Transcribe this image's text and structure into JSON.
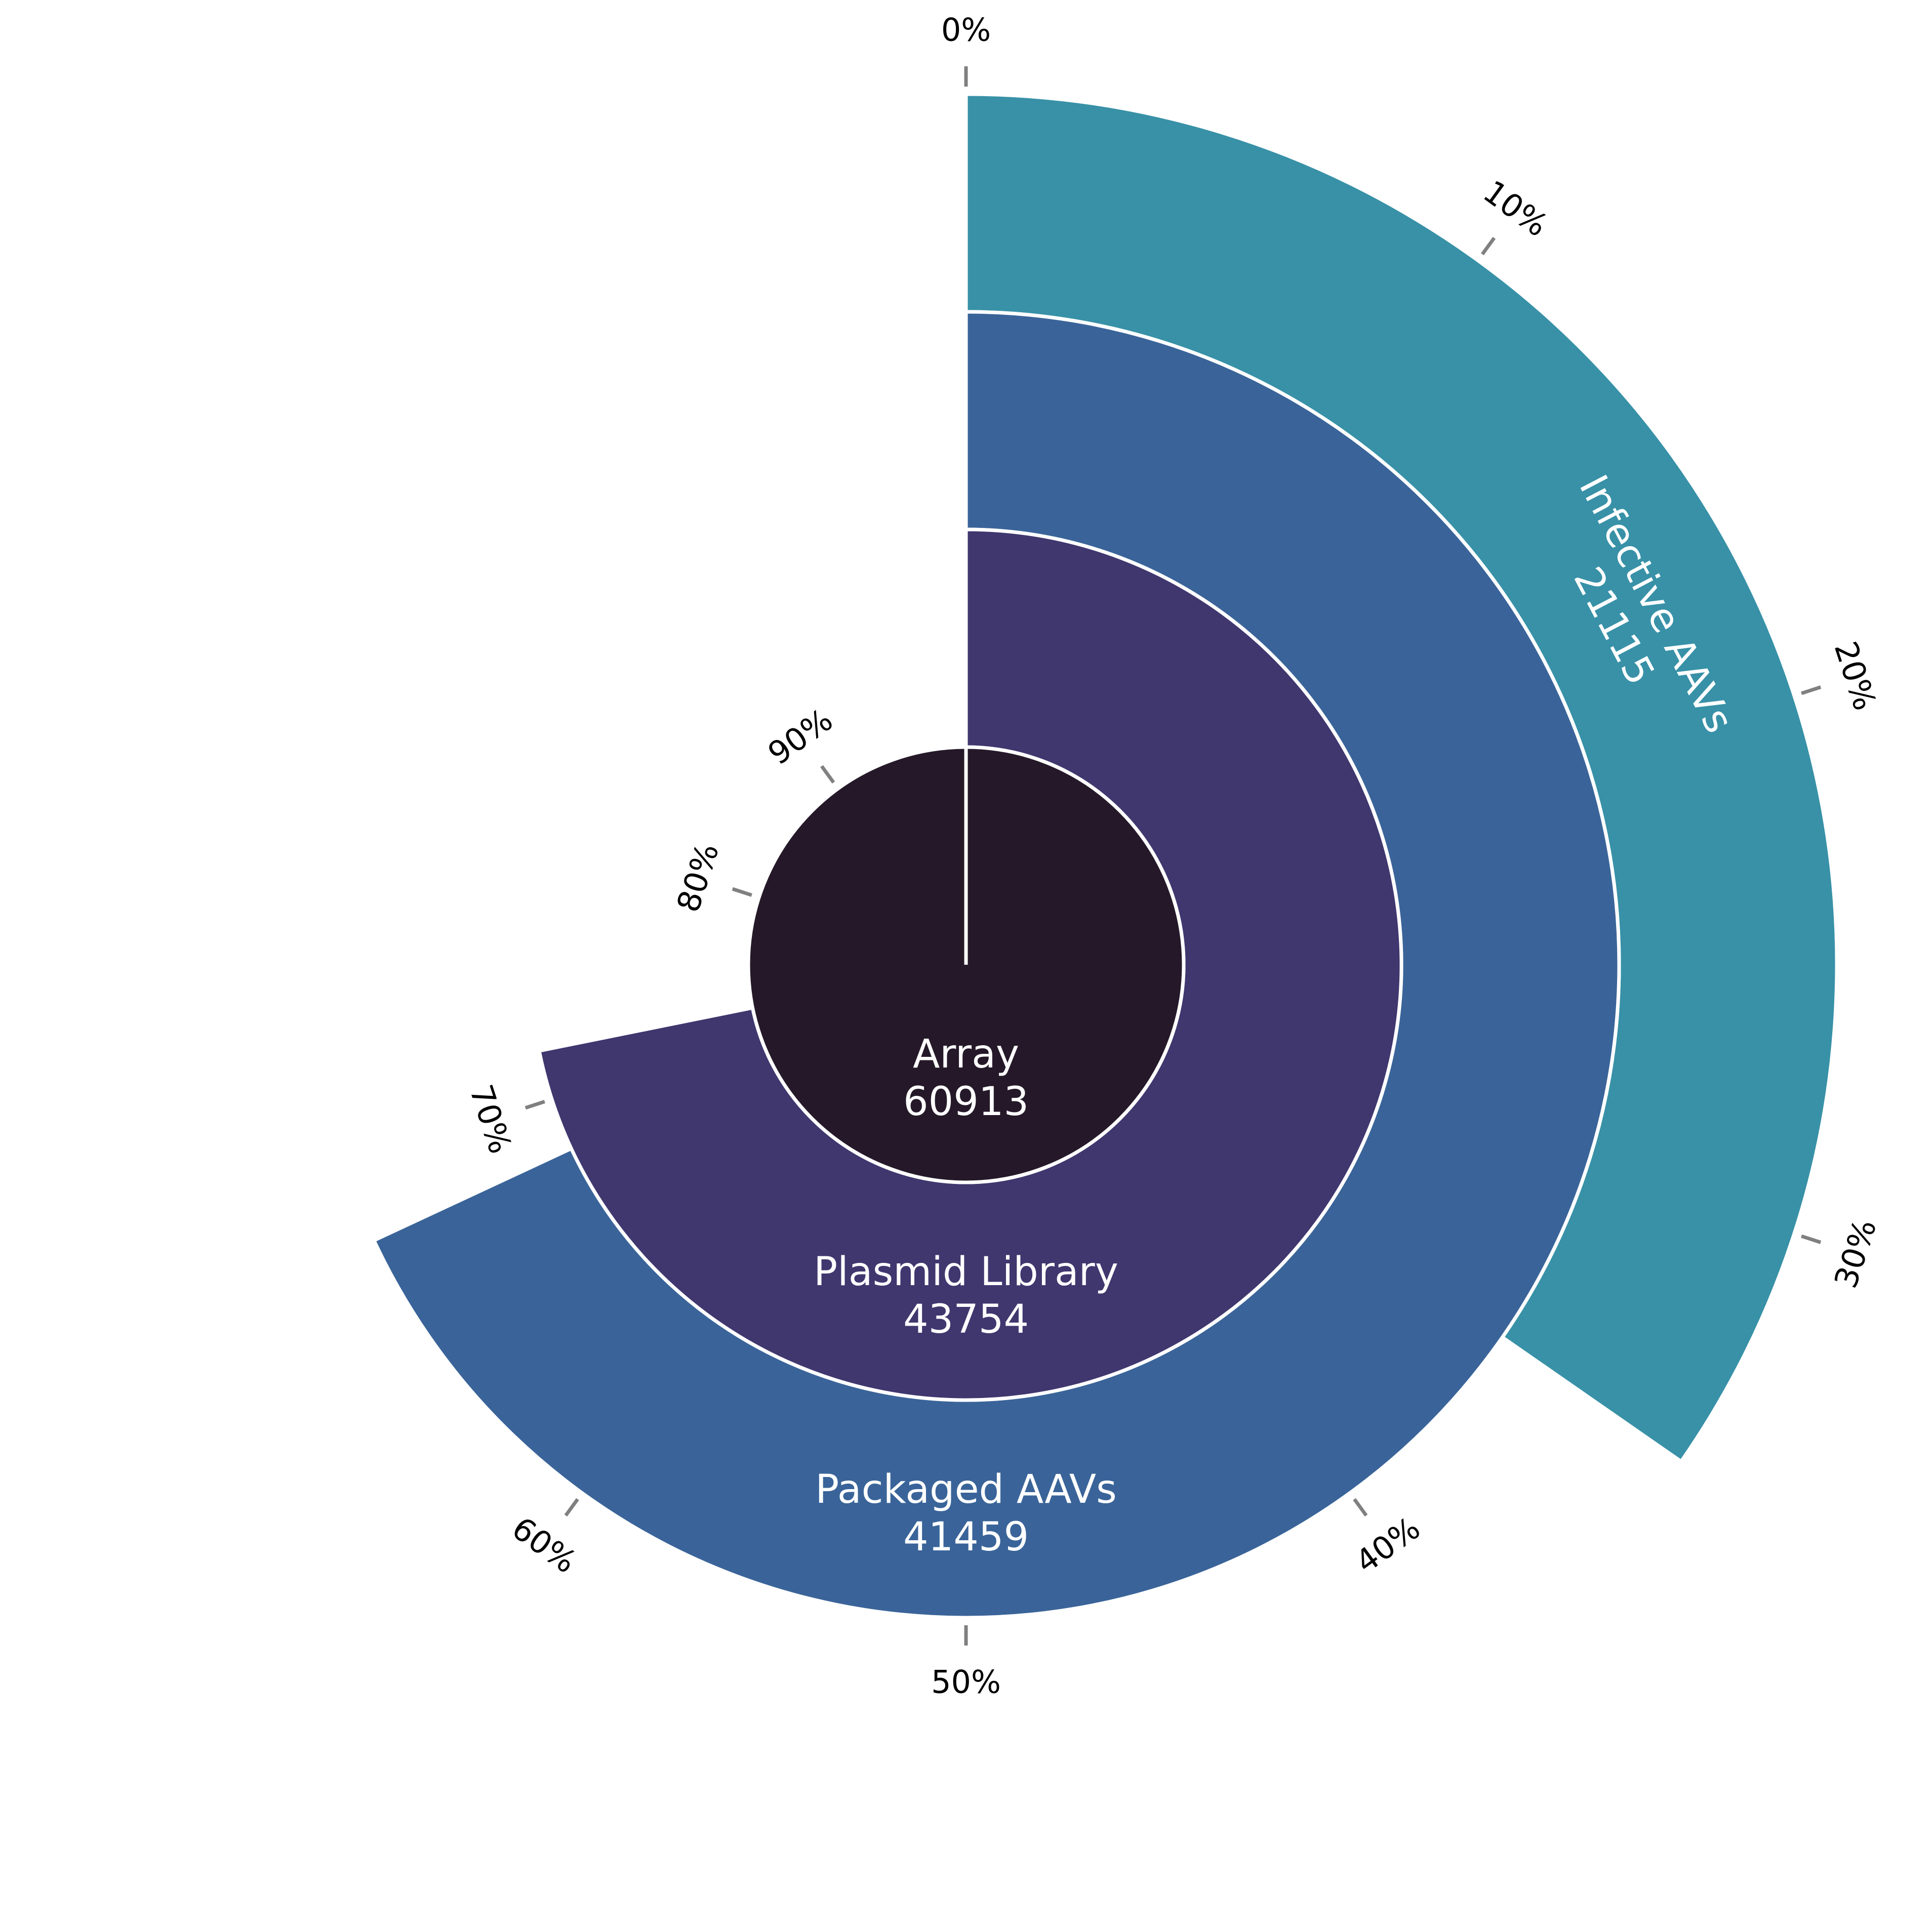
{
  "chart_data": {
    "type": "radial-bar",
    "total": 60913,
    "series": [
      {
        "name": "Array",
        "value": 60913,
        "color": "#251929"
      },
      {
        "name": "Plasmid Library",
        "value": 43754,
        "color": "#3f376e"
      },
      {
        "name": "Packaged AAVs",
        "value": 41459,
        "color": "#3a6499"
      },
      {
        "name": "Infective AAVs",
        "value": 21115,
        "color": "#3891a7"
      }
    ],
    "tick_labels": [
      "0%",
      "10%",
      "20%",
      "30%",
      "40%",
      "50%",
      "60%",
      "70%",
      "80%",
      "90%"
    ],
    "tick_color": "#808080"
  }
}
